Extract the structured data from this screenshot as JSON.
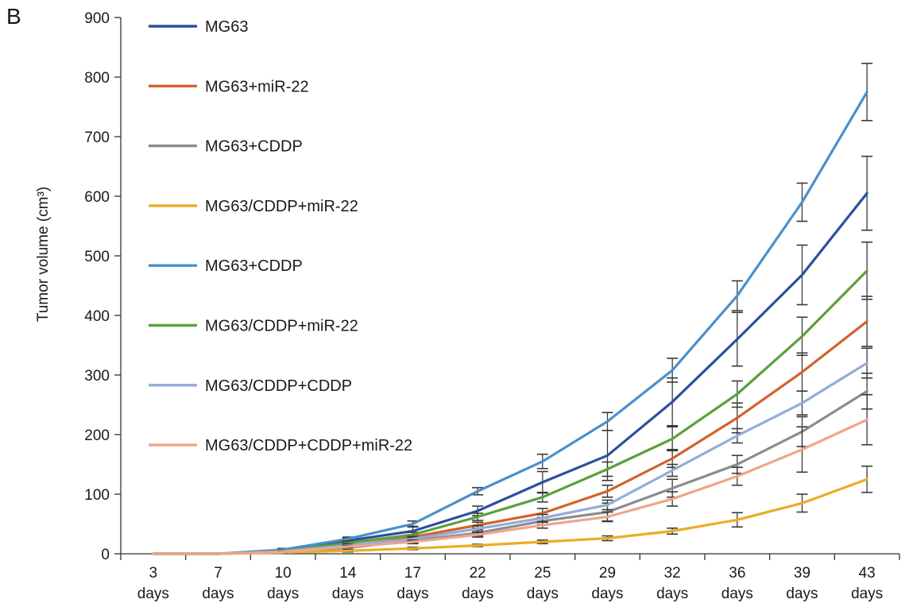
{
  "panel_label": "B",
  "chart_data": {
    "type": "line",
    "title": "",
    "ylabel": "Tumor volume (cm³)",
    "xlabel": "",
    "categories": [
      [
        "3",
        "days"
      ],
      [
        "7",
        "days"
      ],
      [
        "10",
        "days"
      ],
      [
        "14",
        "days"
      ],
      [
        "17",
        "days"
      ],
      [
        "22",
        "days"
      ],
      [
        "25",
        "days"
      ],
      [
        "29",
        "days"
      ],
      [
        "32",
        "days"
      ],
      [
        "36",
        "days"
      ],
      [
        "39",
        "days"
      ],
      [
        "43",
        "days"
      ]
    ],
    "ylim": [
      0,
      900
    ],
    "yticks": [
      0,
      100,
      200,
      300,
      400,
      500,
      600,
      700,
      800,
      900
    ],
    "grid": false,
    "legend_position": "top-left",
    "series": [
      {
        "name": "MG63",
        "color": "#2e4f9e",
        "values": [
          0,
          0,
          5,
          22,
          38,
          72,
          120,
          165,
          255,
          360,
          468,
          605
        ],
        "errors": [
          0,
          0,
          2,
          4,
          8,
          8,
          18,
          42,
          40,
          45,
          50,
          62
        ]
      },
      {
        "name": "MG63+miR-22",
        "color": "#d2622a",
        "values": [
          0,
          0,
          4,
          13,
          28,
          48,
          68,
          105,
          160,
          228,
          305,
          390
        ],
        "errors": [
          0,
          0,
          1,
          3,
          4,
          5,
          8,
          10,
          15,
          25,
          32,
          42
        ]
      },
      {
        "name": "MG63+CDDP",
        "color": "#8c8c8c",
        "values": [
          0,
          0,
          3,
          10,
          22,
          35,
          55,
          70,
          110,
          150,
          205,
          273
        ],
        "errors": [
          0,
          0,
          1,
          3,
          4,
          5,
          6,
          15,
          15,
          15,
          25,
          30
        ]
      },
      {
        "name": "MG63/CDDP+miR-22",
        "color": "#e9ad25",
        "values": [
          0,
          0,
          2,
          5,
          9,
          14,
          20,
          26,
          38,
          57,
          85,
          125
        ],
        "errors": [
          0,
          0,
          1,
          2,
          2,
          2,
          3,
          4,
          5,
          12,
          15,
          22
        ]
      },
      {
        "name": "MG63+CDDP",
        "color": "#4a8fcc",
        "values": [
          0,
          0,
          7,
          25,
          50,
          105,
          155,
          222,
          308,
          433,
          590,
          775
        ],
        "errors": [
          0,
          0,
          2,
          3,
          5,
          6,
          12,
          15,
          20,
          25,
          32,
          48
        ]
      },
      {
        "name": "MG63/CDDP+miR-22",
        "color": "#5aa03c",
        "values": [
          0,
          0,
          5,
          18,
          32,
          62,
          95,
          142,
          193,
          268,
          365,
          475
        ],
        "errors": [
          0,
          0,
          1,
          3,
          4,
          6,
          8,
          12,
          20,
          22,
          32,
          48
        ]
      },
      {
        "name": "MG63/CDDP+CDDP",
        "color": "#93acd9",
        "values": [
          0,
          0,
          4,
          14,
          25,
          42,
          60,
          82,
          140,
          198,
          253,
          320
        ],
        "errors": [
          0,
          0,
          1,
          3,
          4,
          5,
          6,
          8,
          10,
          12,
          20,
          25
        ]
      },
      {
        "name": "MG63/CDDP+CDDP+miR-22",
        "color": "#eea58c",
        "values": [
          0,
          0,
          3,
          12,
          20,
          32,
          48,
          62,
          92,
          130,
          175,
          225
        ],
        "errors": [
          0,
          0,
          1,
          2,
          3,
          4,
          5,
          8,
          12,
          15,
          38,
          42
        ]
      }
    ]
  }
}
